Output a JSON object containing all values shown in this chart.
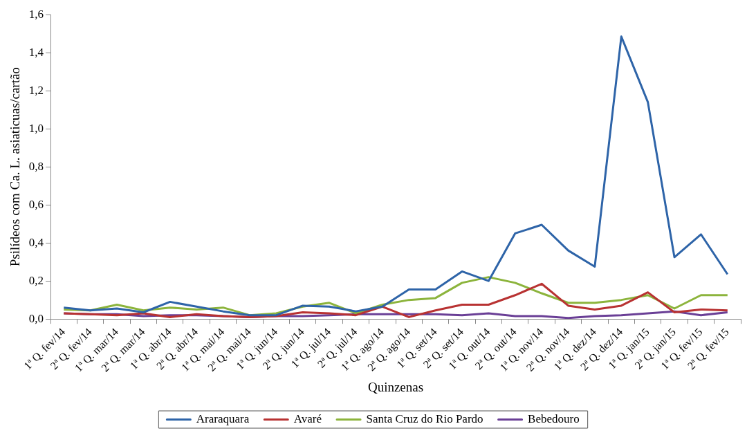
{
  "chart_data": {
    "type": "line",
    "xlabel": "Quinzenas",
    "ylabel": "Psilídeos com Ca. L. asiaticuas/cartão",
    "categories": [
      "1ª Q. fev/14",
      "2ª Q. fev/14",
      "1ª Q. mar/14",
      "2ª Q. mar/14",
      "1ª Q. abr/14",
      "2ª Q. abr/14",
      "1ª Q. mai/14",
      "2ª Q. mai/14",
      "1ª Q. jun/14",
      "2ª Q. jun/14",
      "1ª Q. jul/14",
      "2ª Q. jul/14",
      "1ª Q. ago/14",
      "2ª Q. ago/14",
      "1ª Q. set/14",
      "2ª Q. set/14",
      "1ª Q. out/14",
      "2ª Q. out/14",
      "1ª Q. nov/14",
      "2ª Q. nov/14",
      "1ª Q. dez/14",
      "2ª Q. dez/14",
      "1ª Q. jan/15",
      "2ª Q. jan/15",
      "1ª Q. fev/15",
      "2ª Q. fev/15"
    ],
    "series": [
      {
        "name": "Araraquara",
        "color": "#2e64a8",
        "values": [
          0.06,
          0.045,
          0.055,
          0.035,
          0.09,
          0.065,
          0.04,
          0.02,
          0.02,
          0.07,
          0.065,
          0.04,
          0.065,
          0.155,
          0.155,
          0.25,
          0.2,
          0.45,
          0.495,
          0.36,
          0.275,
          1.485,
          1.14,
          0.325,
          0.445,
          0.235
        ]
      },
      {
        "name": "Avaré",
        "color": "#b83232",
        "values": [
          0.03,
          0.025,
          0.02,
          0.03,
          0.01,
          0.025,
          0.015,
          0.01,
          0.015,
          0.035,
          0.03,
          0.02,
          0.065,
          0.01,
          0.045,
          0.075,
          0.075,
          0.125,
          0.185,
          0.07,
          0.05,
          0.07,
          0.14,
          0.035,
          0.05,
          0.045
        ]
      },
      {
        "name": "Santa Cruz do Rio Pardo",
        "color": "#8cb43c",
        "values": [
          0.05,
          0.045,
          0.075,
          0.045,
          0.06,
          0.05,
          0.06,
          0.02,
          0.03,
          0.065,
          0.085,
          0.03,
          0.075,
          0.1,
          0.11,
          0.19,
          0.22,
          0.19,
          0.135,
          0.085,
          0.085,
          0.1,
          0.125,
          0.055,
          0.125,
          0.125
        ]
      },
      {
        "name": "Bebedouro",
        "color": "#6a3f96",
        "values": [
          0.03,
          0.025,
          0.025,
          0.015,
          0.02,
          0.02,
          0.015,
          0.01,
          0.015,
          0.015,
          0.02,
          0.025,
          0.025,
          0.025,
          0.025,
          0.02,
          0.03,
          0.015,
          0.015,
          0.005,
          0.015,
          0.02,
          0.03,
          0.04,
          0.02,
          0.035
        ]
      }
    ],
    "ylim": [
      0,
      1.6
    ],
    "yticks": [
      {
        "value": 0,
        "label": "0,0"
      },
      {
        "value": 0.2,
        "label": "0,2"
      },
      {
        "value": 0.4,
        "label": "0,4"
      },
      {
        "value": 0.6,
        "label": "0,6"
      },
      {
        "value": 0.8,
        "label": "0,8"
      },
      {
        "value": 1,
        "label": "1,0"
      },
      {
        "value": 1.2,
        "label": "1,2"
      },
      {
        "value": 1.4,
        "label": "1,4"
      },
      {
        "value": 1.6,
        "label": "1,6"
      }
    ],
    "legend": "bottom",
    "marker": "none",
    "line_style": "solid"
  }
}
